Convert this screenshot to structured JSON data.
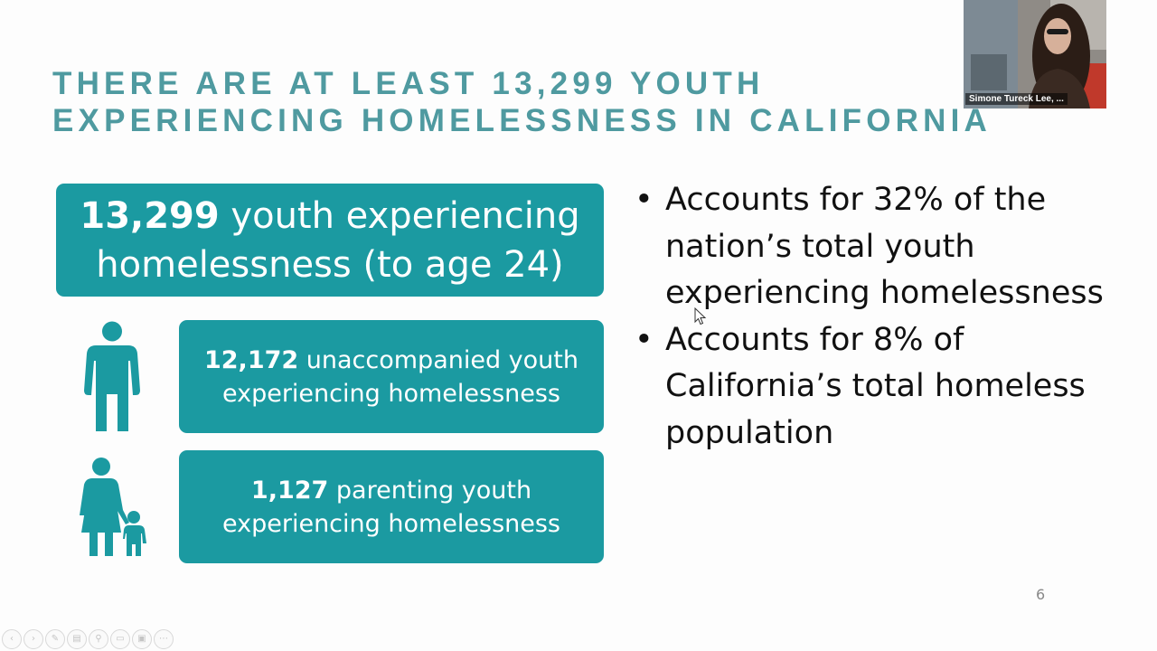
{
  "slide": {
    "title_lines": [
      "THERE ARE AT LEAST 13,299 YOUTH",
      "EXPERIENCING HOMELESSNESS IN CALIFORNIA"
    ],
    "main_box": {
      "number": "13,299",
      "text_rest": " youth experiencing",
      "text_line2": "homelessness (to age 24)"
    },
    "unaccompanied": {
      "number": "12,172",
      "text_rest": " unaccompanied youth",
      "text_line2": "experiencing homelessness"
    },
    "parenting": {
      "number": "1,127",
      "text_rest": " parenting youth",
      "text_line2": "experiencing homelessness"
    },
    "bullets": [
      "Accounts for 32% of the nation’s total youth experiencing homelessness",
      "Accounts for 8% of California’s total homeless population"
    ],
    "page_number": "6",
    "accent_color": "#1b9aa1",
    "title_color": "#4f9aa0"
  },
  "webcam": {
    "participant_name": "Simone Tureck Lee, ..."
  },
  "toolbar": {
    "buttons": [
      {
        "icon": "previous-icon",
        "glyph": "‹"
      },
      {
        "icon": "next-icon",
        "glyph": "›"
      },
      {
        "icon": "pen-icon",
        "glyph": "✎"
      },
      {
        "icon": "slides-icon",
        "glyph": "▤"
      },
      {
        "icon": "zoom-icon",
        "glyph": "⚲"
      },
      {
        "icon": "subtitles-icon",
        "glyph": "▭"
      },
      {
        "icon": "camera-icon",
        "glyph": "▣"
      },
      {
        "icon": "more-icon",
        "glyph": "⋯"
      }
    ]
  }
}
